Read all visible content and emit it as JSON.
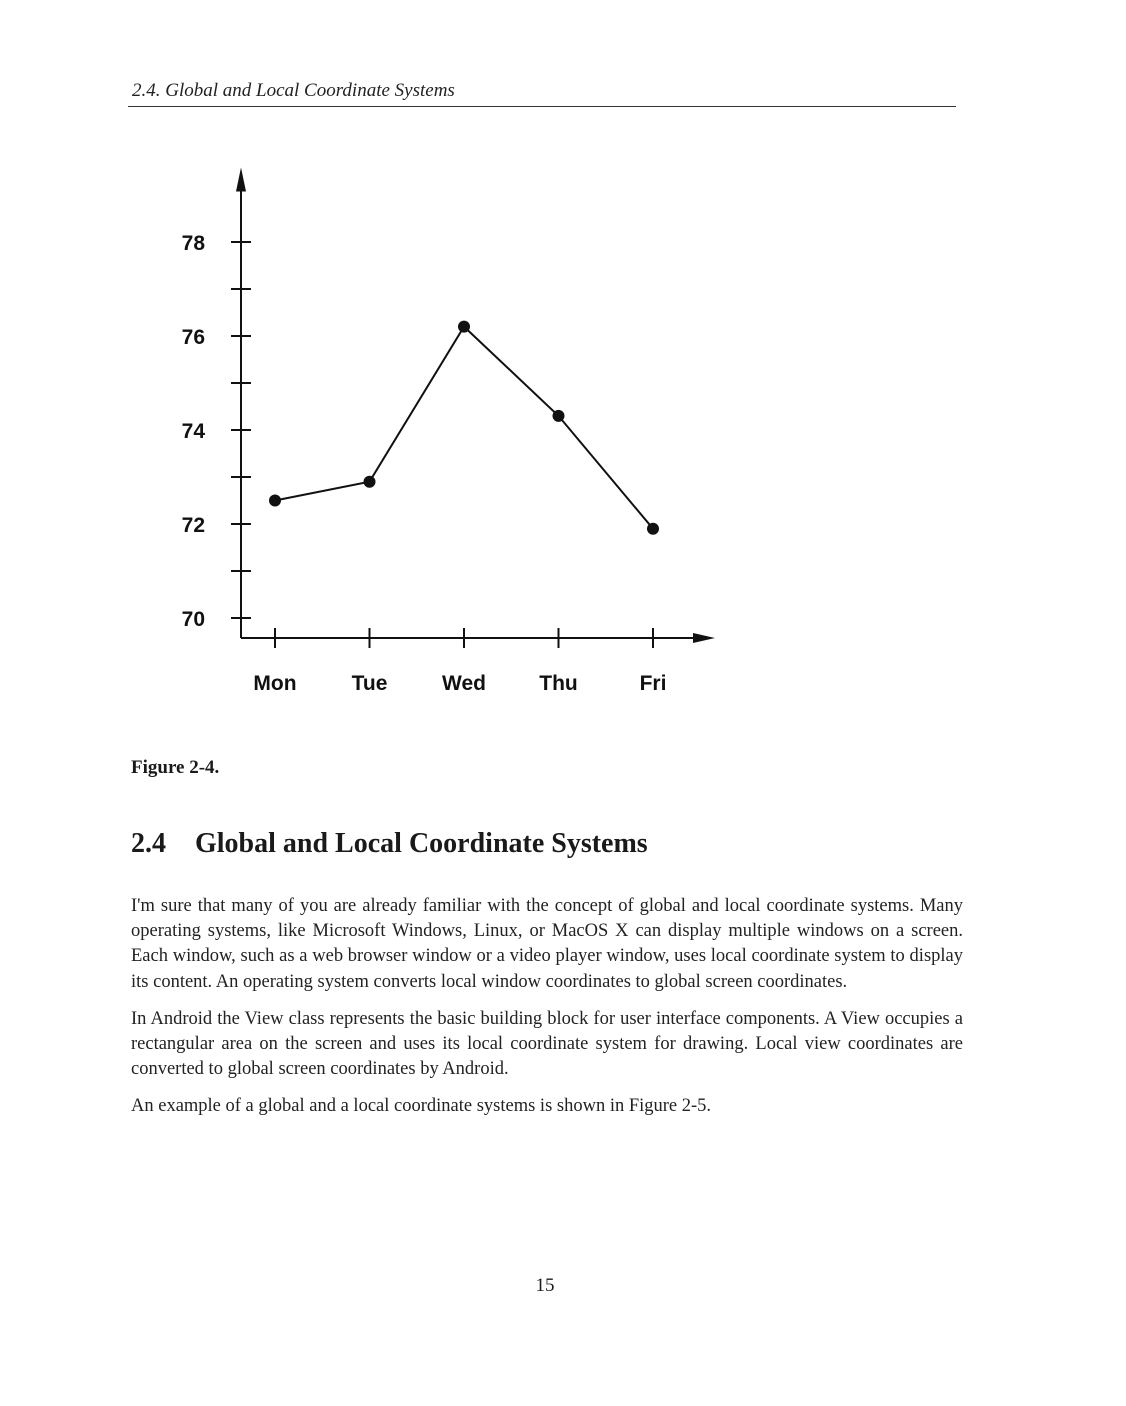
{
  "header": {
    "running_title": "2.4. Global and Local Coordinate Systems"
  },
  "chart_data": {
    "type": "line",
    "categories": [
      "Mon",
      "Tue",
      "Wed",
      "Thu",
      "Fri"
    ],
    "series": [
      {
        "values": [
          72.5,
          72.9,
          76.2,
          74.3,
          71.9
        ]
      }
    ],
    "y_ticks": [
      70,
      72,
      74,
      76,
      78
    ],
    "ylim": [
      70,
      79.5
    ],
    "title": "",
    "xlabel": "",
    "ylabel": "",
    "grid": false,
    "legend": "none"
  },
  "figure": {
    "caption": "Figure 2-4."
  },
  "section": {
    "number": "2.4",
    "title": "Global and Local Coordinate Systems",
    "paragraphs": [
      "I'm sure that many of you are already familiar with the concept of global and local coordinate systems. Many operating systems, like Microsoft Windows, Linux, or MacOS X can display multiple windows on a screen. Each window, such as a web browser window or a video player window, uses local coordinate system to display its content. An operating system converts local window coordinates to global screen coordinates.",
      "In Android the View class represents the basic building block for user interface components. A View occupies a rectangular area on the screen and uses its local coordinate system for drawing. Local view coordinates are converted to global screen coordinates by Android.",
      "An example of a global and a local coordinate systems is shown in Figure 2-5."
    ]
  },
  "footer": {
    "page_number": "15"
  }
}
